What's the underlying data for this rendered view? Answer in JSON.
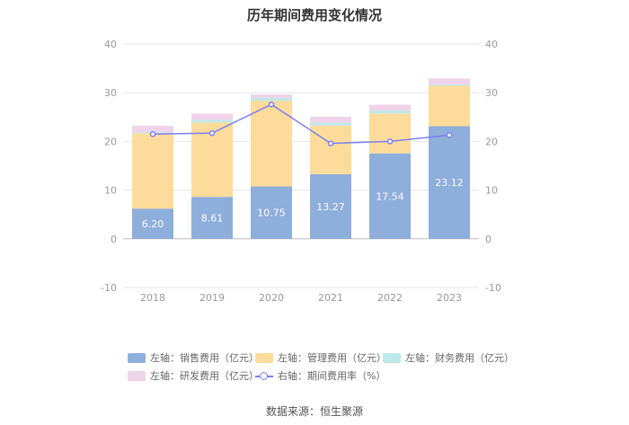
{
  "chart_data": {
    "type": "bar",
    "stacked": true,
    "title": "历年期间费用变化情况",
    "categories": [
      "2018",
      "2019",
      "2020",
      "2021",
      "2022",
      "2023"
    ],
    "series": [
      {
        "name": "左轴：销售费用（亿元）",
        "axis": "left",
        "color": "#8eaedb",
        "values": [
          6.2,
          8.61,
          10.75,
          13.27,
          17.54,
          23.12
        ],
        "labels": [
          "6.20",
          "8.61",
          "10.75",
          "13.27",
          "17.54",
          "23.12"
        ]
      },
      {
        "name": "左轴：管理费用（亿元）",
        "axis": "left",
        "color": "#fddb9b",
        "values": [
          15.5,
          15.3,
          17.6,
          10.0,
          8.2,
          8.3
        ]
      },
      {
        "name": "左轴：财务费用（亿元）",
        "axis": "left",
        "color": "#bfe8ea",
        "values": [
          0.2,
          0.5,
          0.6,
          0.6,
          0.6,
          0.3
        ]
      },
      {
        "name": "左轴：研发费用（亿元）",
        "axis": "left",
        "color": "#efd3ea",
        "values": [
          1.3,
          1.3,
          0.7,
          1.2,
          1.2,
          1.2
        ]
      },
      {
        "name": "右轴：期间费用率（%）",
        "axis": "right",
        "type": "line",
        "color": "#7b7ff0",
        "values": [
          21.5,
          21.7,
          27.6,
          19.6,
          20.0,
          21.3
        ]
      }
    ],
    "yaxis_left": {
      "min": -10,
      "max": 40,
      "ticks": [
        -10,
        0,
        10,
        20,
        30,
        40
      ]
    },
    "yaxis_right": {
      "min": -10,
      "max": 40,
      "ticks": [
        -10,
        0,
        10,
        20,
        30,
        40
      ]
    },
    "grid": true,
    "legend_position": "bottom"
  },
  "source": "数据来源：恒生聚源"
}
